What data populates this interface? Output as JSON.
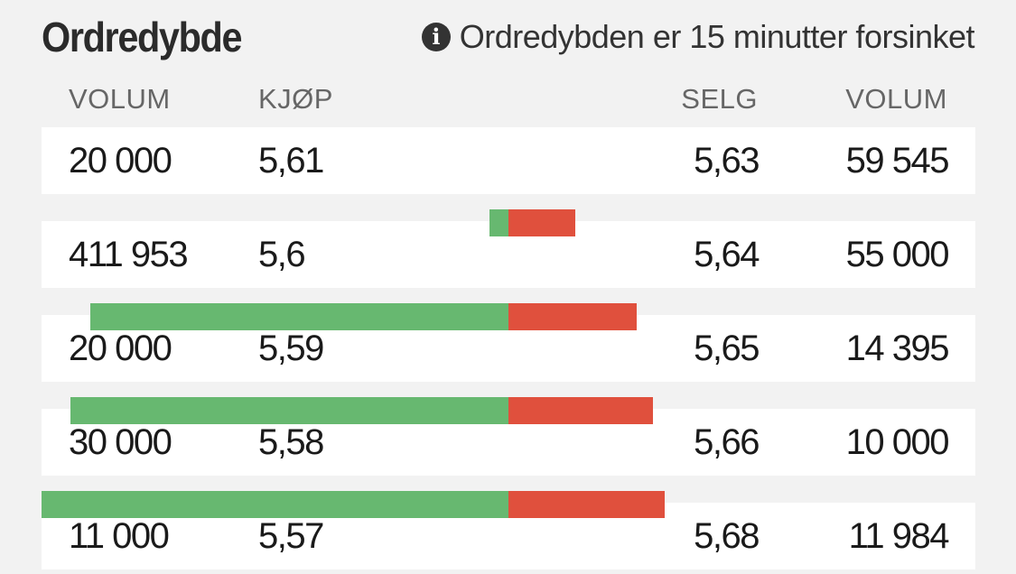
{
  "header": {
    "title": "Ordredybde",
    "notice": "Ordredybden er 15 minutter forsinket",
    "info_icon": "info-icon"
  },
  "columns": {
    "buy_volume": "VOLUM",
    "buy_price": "KJØP",
    "sell_price": "SELG",
    "sell_volume": "VOLUM"
  },
  "colors": {
    "buy": "#67b870",
    "sell": "#e0503d",
    "row_background": "#ffffff",
    "page_background": "#f2f2f2"
  },
  "rows": [
    {
      "buy_volume": "20 000",
      "buy_price": "5,61",
      "sell_price": "5,63",
      "sell_volume": "59 545"
    },
    {
      "buy_volume": "411 953",
      "buy_price": "5,6",
      "sell_price": "5,64",
      "sell_volume": "55 000"
    },
    {
      "buy_volume": "20 000",
      "buy_price": "5,59",
      "sell_price": "5,65",
      "sell_volume": "14 395"
    },
    {
      "buy_volume": "30 000",
      "buy_price": "5,58",
      "sell_price": "5,66",
      "sell_volume": "10 000"
    },
    {
      "buy_volume": "11 000",
      "buy_price": "5,57",
      "sell_price": "5,68",
      "sell_volume": "11 984"
    }
  ],
  "depth_bars": [
    {
      "buy_cumulative": 20000,
      "sell_cumulative": 59545
    },
    {
      "buy_cumulative": 431953,
      "sell_cumulative": 114545
    },
    {
      "buy_cumulative": 451953,
      "sell_cumulative": 128940
    },
    {
      "buy_cumulative": 481953,
      "sell_cumulative": 138940
    }
  ]
}
